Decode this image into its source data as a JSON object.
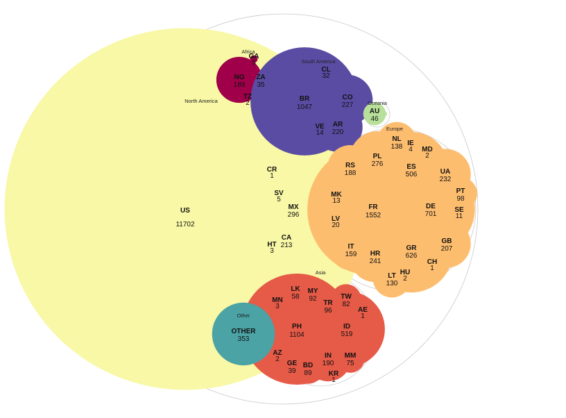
{
  "chart_data": {
    "type": "packed-bubble",
    "title": "",
    "colors": {
      "North America": "#f8f8a6",
      "Africa": "#a0004a",
      "South America": "#5a4ca3",
      "Oceania": "#b8e09a",
      "Europe": "#fdbd6f",
      "Asia": "#e65a48",
      "Other": "#4ba3a5",
      "outline": "#c8c8c8"
    },
    "groups": [
      {
        "name": "North America",
        "countries": [
          {
            "code": "US",
            "value": 11702
          },
          {
            "code": "MX",
            "value": 296
          },
          {
            "code": "CA",
            "value": 213
          },
          {
            "code": "SV",
            "value": 5
          },
          {
            "code": "HT",
            "value": 3
          },
          {
            "code": "CR",
            "value": 1
          }
        ]
      },
      {
        "name": "Africa",
        "countries": [
          {
            "code": "NG",
            "value": 189
          },
          {
            "code": "ZA",
            "value": 35
          },
          {
            "code": "GA",
            "value": 5
          },
          {
            "code": "TZ",
            "value": 2
          }
        ]
      },
      {
        "name": "South America",
        "countries": [
          {
            "code": "BR",
            "value": 1047
          },
          {
            "code": "CO",
            "value": 227
          },
          {
            "code": "AR",
            "value": 220
          },
          {
            "code": "CL",
            "value": 32
          },
          {
            "code": "VE",
            "value": 14
          }
        ]
      },
      {
        "name": "Oceania",
        "countries": [
          {
            "code": "AU",
            "value": 46
          }
        ]
      },
      {
        "name": "Europe",
        "countries": [
          {
            "code": "FR",
            "value": 1552
          },
          {
            "code": "DE",
            "value": 701
          },
          {
            "code": "GR",
            "value": 626
          },
          {
            "code": "ES",
            "value": 506
          },
          {
            "code": "PL",
            "value": 276
          },
          {
            "code": "HR",
            "value": 241
          },
          {
            "code": "UA",
            "value": 232
          },
          {
            "code": "GB",
            "value": 207
          },
          {
            "code": "RS",
            "value": 188
          },
          {
            "code": "IT",
            "value": 159
          },
          {
            "code": "NL",
            "value": 138
          },
          {
            "code": "LT",
            "value": 130
          },
          {
            "code": "PT",
            "value": 98
          },
          {
            "code": "LV",
            "value": 20
          },
          {
            "code": "MK",
            "value": 13
          },
          {
            "code": "SE",
            "value": 11
          },
          {
            "code": "IE",
            "value": 4
          },
          {
            "code": "MD",
            "value": 2
          },
          {
            "code": "HU",
            "value": 2
          },
          {
            "code": "CH",
            "value": 1
          }
        ]
      },
      {
        "name": "Asia",
        "countries": [
          {
            "code": "PH",
            "value": 1104
          },
          {
            "code": "ID",
            "value": 519
          },
          {
            "code": "IN",
            "value": 190
          },
          {
            "code": "TR",
            "value": 96
          },
          {
            "code": "MY",
            "value": 92
          },
          {
            "code": "TW",
            "value": 82
          },
          {
            "code": "MM",
            "value": 75
          },
          {
            "code": "LK",
            "value": 58
          },
          {
            "code": "GE",
            "value": 39
          },
          {
            "code": "BD",
            "value": 89
          },
          {
            "code": "MN",
            "value": 3
          },
          {
            "code": "AZ",
            "value": 2
          },
          {
            "code": "AE",
            "value": 1
          },
          {
            "code": "KR",
            "value": 1
          }
        ]
      },
      {
        "name": "Other",
        "countries": [
          {
            "code": "OTHER",
            "value": 353
          }
        ]
      }
    ]
  }
}
